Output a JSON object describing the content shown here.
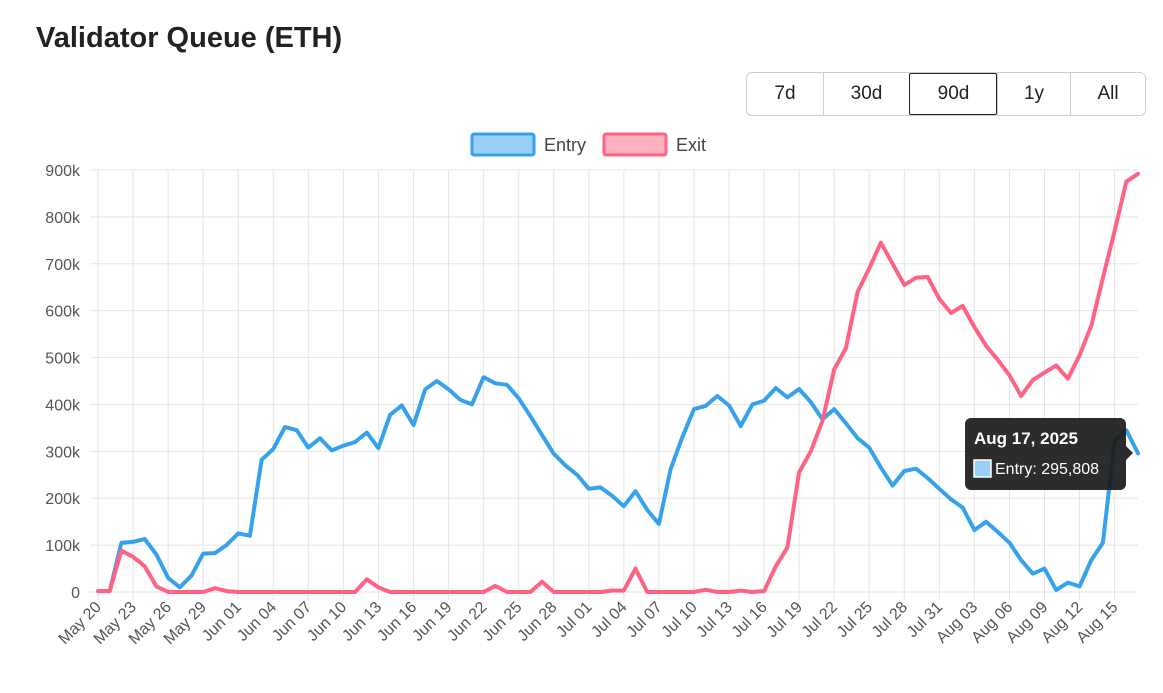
{
  "header": {
    "title": "Validator Queue (ETH)"
  },
  "range_buttons": [
    {
      "label": "7d",
      "active": false
    },
    {
      "label": "30d",
      "active": false
    },
    {
      "label": "90d",
      "active": true
    },
    {
      "label": "1y",
      "active": false
    },
    {
      "label": "All",
      "active": false
    }
  ],
  "tooltip": {
    "title": "Aug 17, 2025",
    "body": "Entry: 295,808"
  },
  "colors": {
    "entry": "#36a2eb",
    "exit": "#ff6384",
    "entry_fill": "#9ad0f5",
    "exit_fill": "#ffb1c1",
    "grid": "#e5e5e5",
    "tooltip_bg": "#1a1a1a"
  },
  "chart_data": {
    "type": "line",
    "title": "",
    "xlabel": "",
    "ylabel": "",
    "ylim": [
      0,
      900000
    ],
    "y_ticks": [
      0,
      100000,
      200000,
      300000,
      400000,
      500000,
      600000,
      700000,
      800000,
      900000
    ],
    "y_tick_labels": [
      "0",
      "100k",
      "200k",
      "300k",
      "400k",
      "500k",
      "600k",
      "700k",
      "800k",
      "900k"
    ],
    "x_tick_labels": [
      "May 20",
      "May 23",
      "May 26",
      "May 29",
      "Jun 01",
      "Jun 04",
      "Jun 07",
      "Jun 10",
      "Jun 13",
      "Jun 16",
      "Jun 19",
      "Jun 22",
      "Jun 25",
      "Jun 28",
      "Jul 01",
      "Jul 04",
      "Jul 07",
      "Jul 10",
      "Jul 13",
      "Jul 16",
      "Jul 19",
      "Jul 22",
      "Jul 25",
      "Jul 28",
      "Jul 31",
      "Aug 03",
      "Aug 06",
      "Aug 09",
      "Aug 12",
      "Aug 15"
    ],
    "grid": true,
    "legend": "top-center",
    "x_start": "May 20",
    "series": [
      {
        "name": "Entry",
        "values": [
          2000,
          2000,
          105000,
          107000,
          113000,
          80000,
          30000,
          10000,
          35000,
          82000,
          83000,
          100000,
          125000,
          120000,
          282000,
          305000,
          352000,
          345000,
          308000,
          328000,
          302000,
          312000,
          320000,
          340000,
          307000,
          378000,
          398000,
          356000,
          432000,
          450000,
          432000,
          410000,
          400000,
          458000,
          445000,
          442000,
          413000,
          375000,
          335000,
          295000,
          270000,
          250000,
          220000,
          223000,
          205000,
          183000,
          215000,
          175000,
          145000,
          262000,
          330000,
          390000,
          397000,
          418000,
          398000,
          354000,
          400000,
          408000,
          435000,
          415000,
          433000,
          405000,
          368000,
          390000,
          360000,
          328000,
          308000,
          265000,
          227000,
          258000,
          263000,
          243000,
          220000,
          198000,
          180000,
          132000,
          150000,
          128000,
          105000,
          68000,
          39000,
          50000,
          4000,
          20000,
          12000,
          68000,
          105000,
          322000,
          345000,
          295808
        ]
      },
      {
        "name": "Exit",
        "values": [
          2000,
          2000,
          88000,
          75000,
          55000,
          12000,
          0,
          0,
          0,
          0,
          8000,
          2000,
          0,
          0,
          0,
          0,
          0,
          0,
          0,
          0,
          0,
          0,
          0,
          27000,
          10000,
          0,
          0,
          0,
          0,
          0,
          0,
          0,
          0,
          0,
          13000,
          0,
          0,
          0,
          22000,
          0,
          0,
          0,
          0,
          0,
          3000,
          3000,
          50000,
          0,
          0,
          0,
          0,
          0,
          5000,
          0,
          0,
          3000,
          0,
          2000,
          55000,
          95000,
          255000,
          300000,
          365000,
          475000,
          520000,
          640000,
          690000,
          745000,
          700000,
          655000,
          670000,
          672000,
          625000,
          595000,
          610000,
          565000,
          525000,
          495000,
          462000,
          418000,
          452000,
          468000,
          483000,
          455000,
          505000,
          568000,
          670000,
          770000,
          875000,
          892000
        ]
      }
    ]
  }
}
